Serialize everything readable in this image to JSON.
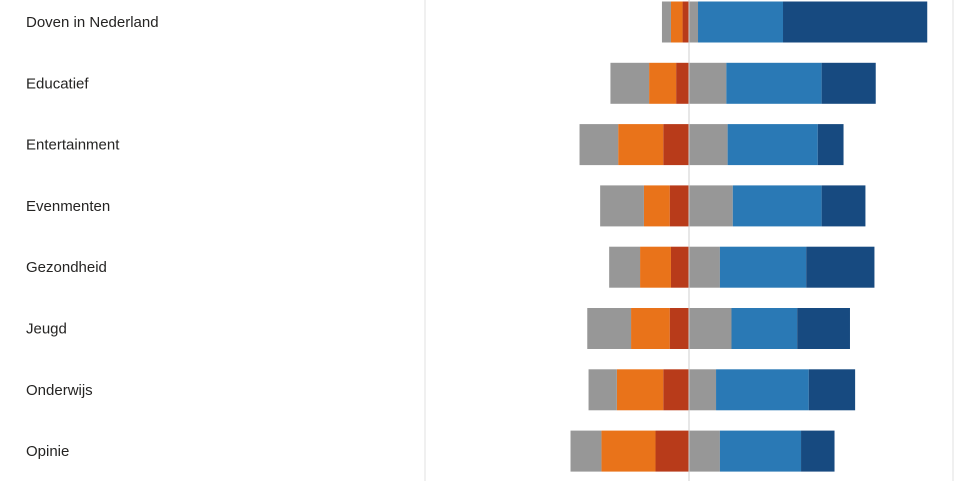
{
  "chart_data": {
    "type": "bar",
    "orientation": "horizontal",
    "stacked": "diverging",
    "categories": [
      "Doven in Nederland",
      "Educatief",
      "Entertainment",
      "Evenmenten",
      "Gezondheid",
      "Jeugd",
      "Onderwijs",
      "Opinie"
    ],
    "series": [
      {
        "color": "#B83B1A",
        "values": [
          -0.025,
          -0.05,
          -0.1,
          -0.075,
          -0.07,
          -0.075,
          -0.1,
          -0.13
        ]
      },
      {
        "color": "#E9731A",
        "values": [
          -0.045,
          -0.105,
          -0.175,
          -0.1,
          -0.12,
          -0.15,
          -0.18,
          -0.21
        ]
      },
      {
        "color": "#979797",
        "values": [
          -0.035,
          -0.15,
          -0.15,
          -0.17,
          -0.12,
          -0.17,
          -0.11,
          -0.12
        ]
      },
      {
        "color": "#979797",
        "values": [
          0.035,
          0.145,
          0.15,
          0.17,
          0.12,
          0.165,
          0.105,
          0.12
        ]
      },
      {
        "color": "#2A79B5",
        "values": [
          0.33,
          0.37,
          0.35,
          0.345,
          0.335,
          0.255,
          0.36,
          0.315
        ]
      },
      {
        "color": "#174A80",
        "values": [
          0.56,
          0.21,
          0.1,
          0.17,
          0.265,
          0.205,
          0.18,
          0.13
        ]
      }
    ],
    "xlim": [
      -1.025,
      1.025
    ],
    "grid": false,
    "legend": "none"
  }
}
